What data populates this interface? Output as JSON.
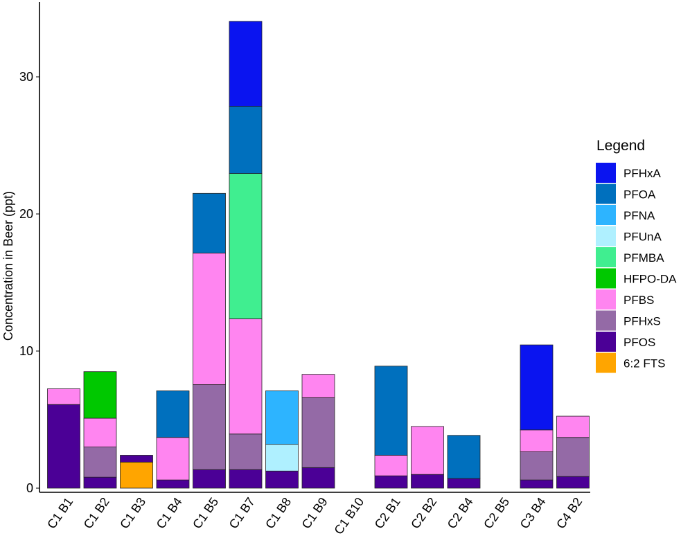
{
  "chart_data": {
    "type": "bar",
    "stacked": true,
    "title": "",
    "xlabel": "",
    "ylabel": "Concentration in Beer (ppt)",
    "ylim": [
      0,
      34.5
    ],
    "yticks": [
      0,
      10,
      20,
      30
    ],
    "grid": false,
    "legend_title": "Legend",
    "legend_position": "right",
    "categories": [
      "C1 B1",
      "C1 B2",
      "C1 B3",
      "C1 B4",
      "C1 B5",
      "C1 B7",
      "C1 B8",
      "C1 B9",
      "C1 B10",
      "C2 B1",
      "C2 B2",
      "C2 B4",
      "C2 B5",
      "C3 B4",
      "C4 B2"
    ],
    "series": [
      {
        "name": "6:2 FTS",
        "color": "#FFA500",
        "values": [
          0,
          0,
          1.9,
          0,
          0,
          0,
          0,
          0,
          0,
          0,
          0,
          0,
          0,
          0,
          0
        ]
      },
      {
        "name": "PFOS",
        "color": "#4B0096",
        "values": [
          6.1,
          0.8,
          0.5,
          0.6,
          1.35,
          1.35,
          1.25,
          1.5,
          0,
          0.9,
          1.0,
          0.7,
          0,
          0.6,
          0.85
        ]
      },
      {
        "name": "PFHxS",
        "color": "#946AA6",
        "values": [
          0,
          2.2,
          0,
          0,
          6.2,
          2.6,
          0,
          5.1,
          0,
          0,
          0,
          0,
          0,
          2.05,
          2.85
        ]
      },
      {
        "name": "PFBS",
        "color": "#FF85F0",
        "values": [
          1.15,
          2.1,
          0,
          3.1,
          9.6,
          8.4,
          0,
          1.7,
          0,
          1.5,
          3.5,
          0,
          0,
          1.6,
          1.55
        ]
      },
      {
        "name": "HFPO-DA",
        "color": "#00C800",
        "values": [
          0,
          3.4,
          0,
          0,
          0,
          0,
          0,
          0,
          0,
          0,
          0,
          0,
          0,
          0,
          0
        ]
      },
      {
        "name": "PFMBA",
        "color": "#40EE90",
        "values": [
          0,
          0,
          0,
          0,
          0,
          10.6,
          0,
          0,
          0,
          0,
          0,
          0,
          0,
          0,
          0
        ]
      },
      {
        "name": "PFUnA",
        "color": "#AFF0FF",
        "values": [
          0,
          0,
          0,
          0,
          0,
          0,
          1.95,
          0,
          0,
          0,
          0,
          0,
          0,
          0,
          0
        ]
      },
      {
        "name": "PFNA",
        "color": "#2DB4FF",
        "values": [
          0,
          0,
          0,
          0,
          0,
          0,
          3.9,
          0,
          0,
          0,
          0,
          0,
          0,
          0,
          0
        ]
      },
      {
        "name": "PFOA",
        "color": "#0070BE",
        "values": [
          0,
          0,
          0,
          3.4,
          4.35,
          4.9,
          0,
          0,
          0,
          6.5,
          0,
          3.15,
          0,
          0,
          0
        ]
      },
      {
        "name": "PFHxA",
        "color": "#0A14F0",
        "values": [
          0,
          0,
          0,
          0,
          0,
          6.2,
          0,
          0,
          0,
          0,
          0,
          0,
          0,
          6.2,
          0
        ]
      }
    ],
    "legend_order": [
      "PFHxA",
      "PFOA",
      "PFNA",
      "PFUnA",
      "PFMBA",
      "HFPO-DA",
      "PFBS",
      "PFHxS",
      "PFOS",
      "6:2 FTS"
    ]
  }
}
